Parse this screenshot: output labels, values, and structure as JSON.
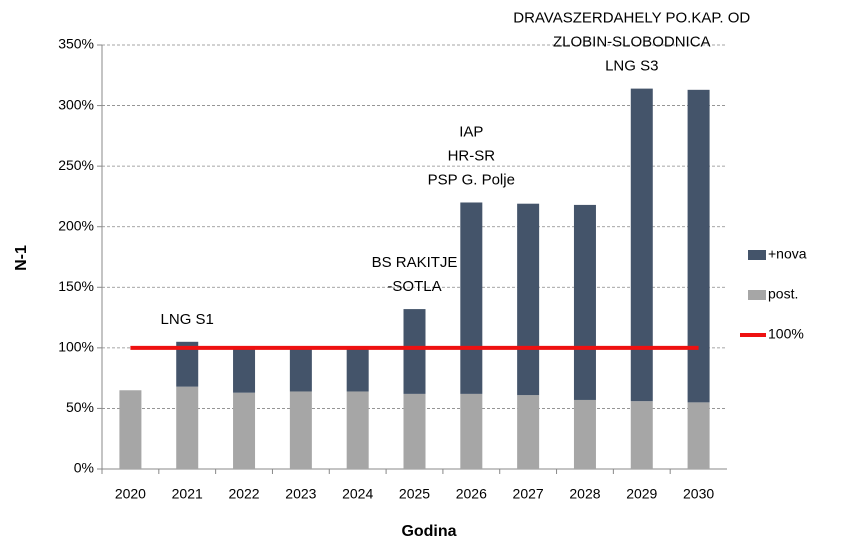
{
  "chart_data": {
    "type": "bar",
    "stacked": true,
    "xlabel": "Godina",
    "ylabel": "N-1",
    "categories": [
      "2020",
      "2021",
      "2022",
      "2023",
      "2024",
      "2025",
      "2026",
      "2027",
      "2028",
      "2029",
      "2030"
    ],
    "series": [
      {
        "name": "post.",
        "color": "#a6a6a6",
        "values": [
          65,
          68,
          63,
          64,
          64,
          62,
          62,
          61,
          57,
          56,
          55
        ]
      },
      {
        "name": "+nova",
        "color": "#44546a",
        "values": [
          0,
          37,
          37,
          36,
          36,
          70,
          158,
          158,
          161,
          258,
          258
        ]
      },
      {
        "name": "100%",
        "color": "#ee1111",
        "type": "line",
        "values": [
          100,
          100,
          100,
          100,
          100,
          100,
          100,
          100,
          100,
          100,
          100
        ]
      }
    ],
    "ylim": [
      0,
      350
    ],
    "yticks": [
      {
        "value": 0,
        "label": "0%"
      },
      {
        "value": 50,
        "label": "50%"
      },
      {
        "value": 100,
        "label": "100%"
      },
      {
        "value": 150,
        "label": "150%"
      },
      {
        "value": 200,
        "label": "200%"
      },
      {
        "value": 250,
        "label": "250%"
      },
      {
        "value": 300,
        "label": "300%"
      },
      {
        "value": 350,
        "label": "350%"
      }
    ],
    "grid": true,
    "legend": "right",
    "annotations": [
      {
        "x": "2021",
        "lines": [
          "LNG S1"
        ]
      },
      {
        "x": "2025",
        "lines": [
          "BS RAKITJE",
          "-SOTLA"
        ]
      },
      {
        "x": "2026",
        "lines": [
          "IAP",
          "HR-SR",
          "PSP G. Polje"
        ]
      },
      {
        "x": "2029",
        "lines": [
          "DRAVASZERDAHELY PO.KAP. OD",
          "ZLOBIN-SLOBODNICA",
          "LNG S3"
        ]
      }
    ]
  }
}
